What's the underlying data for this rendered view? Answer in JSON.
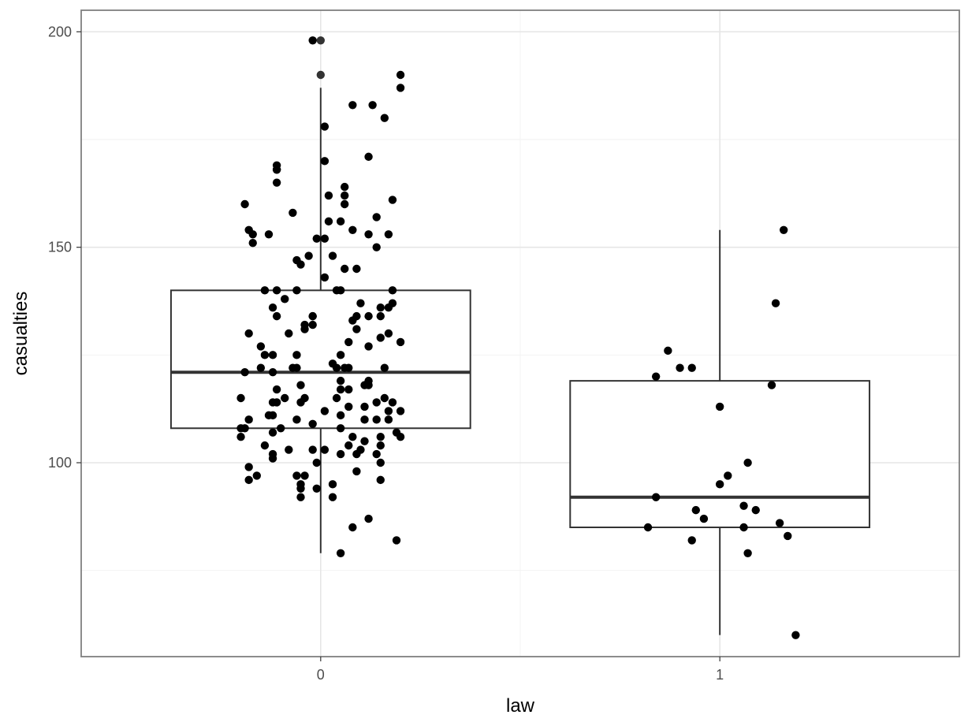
{
  "chart_data": {
    "type": "boxplot",
    "title": "",
    "xlabel": "law",
    "ylabel": "casualties",
    "categories": [
      "0",
      "1"
    ],
    "ylim": [
      55,
      205
    ],
    "y_major_ticks": [
      100,
      150,
      200
    ],
    "y_minor_ticks": [
      75,
      125,
      175
    ],
    "y_tick_labels": [
      "100",
      "150",
      "200"
    ],
    "grid": true,
    "legend": "none",
    "boxes": [
      {
        "category": "0",
        "whisker_low": 79,
        "q1": 108,
        "median": 121,
        "q3": 140,
        "whisker_high": 187,
        "outliers": [
          198,
          190
        ]
      },
      {
        "category": "1",
        "whisker_low": 60,
        "q1": 85,
        "median": 92,
        "q3": 119,
        "whisker_high": 154,
        "outliers": []
      }
    ],
    "jitter_points": [
      {
        "x": -0.02,
        "y": 198
      },
      {
        "x": 0.01,
        "y": 178
      },
      {
        "x": 0.08,
        "y": 183
      },
      {
        "x": 0.13,
        "y": 183
      },
      {
        "x": 0.2,
        "y": 190
      },
      {
        "x": 0.2,
        "y": 187
      },
      {
        "x": 0.16,
        "y": 180
      },
      {
        "x": 0.12,
        "y": 171
      },
      {
        "x": 0.01,
        "y": 170
      },
      {
        "x": -0.11,
        "y": 169
      },
      {
        "x": -0.11,
        "y": 168
      },
      {
        "x": -0.11,
        "y": 168
      },
      {
        "x": -0.11,
        "y": 165
      },
      {
        "x": 0.06,
        "y": 164
      },
      {
        "x": 0.02,
        "y": 162
      },
      {
        "x": 0.06,
        "y": 162
      },
      {
        "x": 0.18,
        "y": 161
      },
      {
        "x": 0.06,
        "y": 160
      },
      {
        "x": -0.19,
        "y": 160
      },
      {
        "x": -0.07,
        "y": 158
      },
      {
        "x": 0.14,
        "y": 157
      },
      {
        "x": 0.02,
        "y": 156
      },
      {
        "x": 0.05,
        "y": 156
      },
      {
        "x": -0.18,
        "y": 154
      },
      {
        "x": 0.08,
        "y": 154
      },
      {
        "x": 0.17,
        "y": 153
      },
      {
        "x": -0.17,
        "y": 153
      },
      {
        "x": -0.13,
        "y": 153
      },
      {
        "x": 0.12,
        "y": 153
      },
      {
        "x": -0.01,
        "y": 152
      },
      {
        "x": 0.01,
        "y": 152
      },
      {
        "x": -0.17,
        "y": 151
      },
      {
        "x": 0.14,
        "y": 150
      },
      {
        "x": 0.03,
        "y": 148
      },
      {
        "x": -0.03,
        "y": 148
      },
      {
        "x": -0.06,
        "y": 147
      },
      {
        "x": -0.05,
        "y": 146
      },
      {
        "x": 0.06,
        "y": 145
      },
      {
        "x": 0.09,
        "y": 145
      },
      {
        "x": 0.01,
        "y": 143
      },
      {
        "x": -0.14,
        "y": 140
      },
      {
        "x": -0.11,
        "y": 140
      },
      {
        "x": -0.06,
        "y": 140
      },
      {
        "x": 0.04,
        "y": 140
      },
      {
        "x": 0.05,
        "y": 140
      },
      {
        "x": 0.18,
        "y": 140
      },
      {
        "x": -0.09,
        "y": 138
      },
      {
        "x": 0.18,
        "y": 137
      },
      {
        "x": 0.1,
        "y": 137
      },
      {
        "x": 0.17,
        "y": 136
      },
      {
        "x": -0.12,
        "y": 136
      },
      {
        "x": 0.15,
        "y": 136
      },
      {
        "x": -0.11,
        "y": 134
      },
      {
        "x": -0.02,
        "y": 134
      },
      {
        "x": -0.02,
        "y": 134
      },
      {
        "x": 0.12,
        "y": 134
      },
      {
        "x": 0.15,
        "y": 134
      },
      {
        "x": 0.09,
        "y": 134
      },
      {
        "x": 0.08,
        "y": 133
      },
      {
        "x": -0.04,
        "y": 132
      },
      {
        "x": -0.02,
        "y": 132
      },
      {
        "x": -0.04,
        "y": 131
      },
      {
        "x": 0.09,
        "y": 131
      },
      {
        "x": -0.18,
        "y": 130
      },
      {
        "x": -0.08,
        "y": 130
      },
      {
        "x": 0.17,
        "y": 130
      },
      {
        "x": 0.15,
        "y": 129
      },
      {
        "x": 0.07,
        "y": 128
      },
      {
        "x": 0.2,
        "y": 128
      },
      {
        "x": -0.15,
        "y": 127
      },
      {
        "x": 0.12,
        "y": 127
      },
      {
        "x": -0.14,
        "y": 125
      },
      {
        "x": -0.12,
        "y": 125
      },
      {
        "x": -0.06,
        "y": 125
      },
      {
        "x": 0.05,
        "y": 125
      },
      {
        "x": 0.03,
        "y": 123
      },
      {
        "x": 0.04,
        "y": 122
      },
      {
        "x": 0.06,
        "y": 122
      },
      {
        "x": 0.07,
        "y": 122
      },
      {
        "x": -0.15,
        "y": 122
      },
      {
        "x": 0.16,
        "y": 122
      },
      {
        "x": -0.07,
        "y": 122
      },
      {
        "x": -0.06,
        "y": 122
      },
      {
        "x": -0.19,
        "y": 121
      },
      {
        "x": -0.12,
        "y": 121
      },
      {
        "x": 0.05,
        "y": 119
      },
      {
        "x": 0.12,
        "y": 119
      },
      {
        "x": -0.05,
        "y": 118
      },
      {
        "x": 0.11,
        "y": 118
      },
      {
        "x": 0.12,
        "y": 118
      },
      {
        "x": -0.11,
        "y": 117
      },
      {
        "x": 0.05,
        "y": 117
      },
      {
        "x": 0.07,
        "y": 117
      },
      {
        "x": -0.2,
        "y": 115
      },
      {
        "x": -0.09,
        "y": 115
      },
      {
        "x": -0.04,
        "y": 115
      },
      {
        "x": 0.04,
        "y": 115
      },
      {
        "x": 0.16,
        "y": 115
      },
      {
        "x": 0.14,
        "y": 114
      },
      {
        "x": 0.18,
        "y": 114
      },
      {
        "x": -0.12,
        "y": 114
      },
      {
        "x": -0.11,
        "y": 114
      },
      {
        "x": -0.05,
        "y": 114
      },
      {
        "x": 0.07,
        "y": 113
      },
      {
        "x": 0.11,
        "y": 113
      },
      {
        "x": 0.01,
        "y": 112
      },
      {
        "x": 0.17,
        "y": 112
      },
      {
        "x": 0.2,
        "y": 112
      },
      {
        "x": -0.13,
        "y": 111
      },
      {
        "x": -0.12,
        "y": 111
      },
      {
        "x": 0.05,
        "y": 111
      },
      {
        "x": 0.11,
        "y": 110
      },
      {
        "x": -0.18,
        "y": 110
      },
      {
        "x": -0.06,
        "y": 110
      },
      {
        "x": 0.14,
        "y": 110
      },
      {
        "x": 0.17,
        "y": 110
      },
      {
        "x": -0.02,
        "y": 109
      },
      {
        "x": -0.2,
        "y": 108
      },
      {
        "x": -0.19,
        "y": 108
      },
      {
        "x": -0.1,
        "y": 108
      },
      {
        "x": 0.05,
        "y": 108
      },
      {
        "x": -0.12,
        "y": 107
      },
      {
        "x": 0.19,
        "y": 107
      },
      {
        "x": -0.2,
        "y": 106
      },
      {
        "x": 0.08,
        "y": 106
      },
      {
        "x": 0.15,
        "y": 106
      },
      {
        "x": 0.2,
        "y": 106
      },
      {
        "x": 0.11,
        "y": 105
      },
      {
        "x": 0.07,
        "y": 104
      },
      {
        "x": 0.15,
        "y": 104
      },
      {
        "x": -0.14,
        "y": 104
      },
      {
        "x": 0.1,
        "y": 103
      },
      {
        "x": -0.08,
        "y": 103
      },
      {
        "x": -0.02,
        "y": 103
      },
      {
        "x": 0.01,
        "y": 103
      },
      {
        "x": 0.09,
        "y": 102
      },
      {
        "x": 0.14,
        "y": 102
      },
      {
        "x": 0.05,
        "y": 102
      },
      {
        "x": -0.12,
        "y": 102
      },
      {
        "x": -0.12,
        "y": 101
      },
      {
        "x": 0.15,
        "y": 100
      },
      {
        "x": -0.01,
        "y": 100
      },
      {
        "x": -0.18,
        "y": 99
      },
      {
        "x": 0.09,
        "y": 98
      },
      {
        "x": -0.06,
        "y": 97
      },
      {
        "x": -0.04,
        "y": 97
      },
      {
        "x": -0.16,
        "y": 97
      },
      {
        "x": -0.18,
        "y": 96
      },
      {
        "x": 0.15,
        "y": 96
      },
      {
        "x": -0.05,
        "y": 95
      },
      {
        "x": 0.03,
        "y": 95
      },
      {
        "x": -0.05,
        "y": 94
      },
      {
        "x": -0.01,
        "y": 94
      },
      {
        "x": -0.05,
        "y": 92
      },
      {
        "x": 0.03,
        "y": 92
      },
      {
        "x": 0.12,
        "y": 87
      },
      {
        "x": 0.08,
        "y": 85
      },
      {
        "x": 0.19,
        "y": 82
      },
      {
        "x": 0.05,
        "y": 79
      },
      {
        "x": 1.16,
        "y": 154
      },
      {
        "x": 1.14,
        "y": 137
      },
      {
        "x": 0.87,
        "y": 126
      },
      {
        "x": 0.9,
        "y": 122
      },
      {
        "x": 0.93,
        "y": 122
      },
      {
        "x": 0.84,
        "y": 120
      },
      {
        "x": 1.13,
        "y": 118
      },
      {
        "x": 1.0,
        "y": 113
      },
      {
        "x": 1.07,
        "y": 100
      },
      {
        "x": 1.02,
        "y": 97
      },
      {
        "x": 1.0,
        "y": 95
      },
      {
        "x": 0.84,
        "y": 92
      },
      {
        "x": 1.06,
        "y": 90
      },
      {
        "x": 0.94,
        "y": 89
      },
      {
        "x": 1.09,
        "y": 89
      },
      {
        "x": 0.96,
        "y": 87
      },
      {
        "x": 1.15,
        "y": 86
      },
      {
        "x": 0.82,
        "y": 85
      },
      {
        "x": 1.06,
        "y": 85
      },
      {
        "x": 1.17,
        "y": 83
      },
      {
        "x": 0.93,
        "y": 82
      },
      {
        "x": 1.07,
        "y": 79
      },
      {
        "x": 1.19,
        "y": 60
      }
    ]
  }
}
